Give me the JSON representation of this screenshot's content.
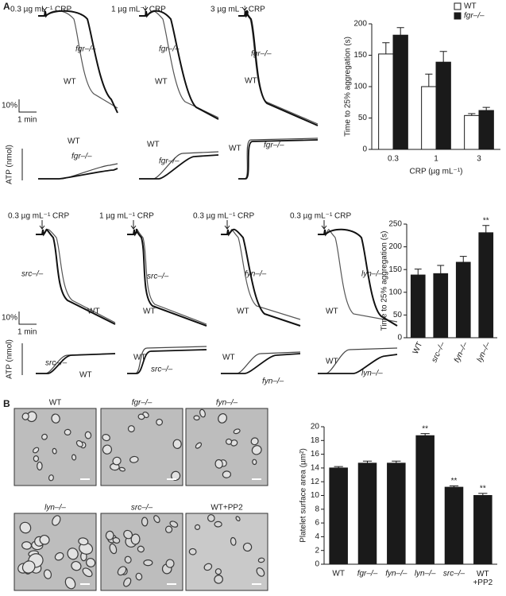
{
  "panel_labels": [
    "A",
    "B"
  ],
  "traces_top": {
    "scale_y": "10%",
    "scale_x": "1 min",
    "atp_axis": "ATP (nmol)",
    "panels": [
      {
        "condition": "0.3 µg mL⁻¹ CRP",
        "labels": [
          "fgr–/–",
          "WT"
        ],
        "atp_labels": [
          "WT",
          "fgr–/–"
        ]
      },
      {
        "condition": "1 µg mL⁻¹ CRP",
        "labels": [
          "fgr–/–",
          "WT"
        ],
        "atp_labels": [
          "WT",
          "fgr–/–"
        ]
      },
      {
        "condition": "3 µg mL⁻¹ CRP",
        "labels": [
          "fgr–/–",
          "WT"
        ],
        "atp_labels": [
          "WT",
          "fgr–/–"
        ]
      }
    ]
  },
  "traces_bottom": {
    "scale_y": "10%",
    "scale_x": "1 min",
    "atp_axis": "ATP (nmol)",
    "panels": [
      {
        "condition": "0.3 µg mL⁻¹ CRP",
        "labels": [
          "src–/–",
          "WT"
        ],
        "atp_labels": [
          "src–/–",
          "WT"
        ]
      },
      {
        "condition": "1 µg mL⁻¹ CRP",
        "labels": [
          "src–/–",
          "WT"
        ],
        "atp_labels": [
          "WT",
          "src–/–"
        ]
      },
      {
        "condition": "0.3 µg mL⁻¹ CRP",
        "labels": [
          "fyn–/–",
          "WT"
        ],
        "atp_labels": [
          "WT",
          "fyn–/–"
        ]
      },
      {
        "condition": "0.3 µg mL⁻¹ CRP",
        "labels": [
          "lyn–/–",
          "WT"
        ],
        "atp_labels": [
          "WT",
          "lyn–/–"
        ]
      }
    ]
  },
  "images": [
    "WT",
    "fgr–/–",
    "fyn–/–",
    "lyn–/–",
    "src–/–",
    "WT+PP2"
  ],
  "chart_data": [
    {
      "type": "bar",
      "categories": [
        "0.3",
        "1",
        "3"
      ],
      "series": [
        {
          "name": "WT",
          "color": "#ffffff",
          "values": [
            152,
            100,
            54
          ],
          "errors": [
            18,
            20,
            3
          ]
        },
        {
          "name": "fgr–/–",
          "color": "#1a1a1a",
          "values": [
            182,
            139,
            62
          ],
          "errors": [
            12,
            17,
            5
          ]
        }
      ],
      "ylim": [
        0,
        200
      ],
      "yticks": [
        0,
        50,
        100,
        150,
        200
      ],
      "y_label": "Time to 25% aggregation (s)",
      "x_label": "CRP (µg mL⁻¹)",
      "legend": "upper right"
    },
    {
      "type": "bar",
      "categories": [
        "WT",
        "src–/–",
        "fyn–/–",
        "lyn–/–"
      ],
      "values": [
        138,
        141,
        166,
        231
      ],
      "errors": [
        13,
        18,
        13,
        16
      ],
      "color": "#1a1a1a",
      "significance": [
        null,
        null,
        null,
        "**"
      ],
      "ylim": [
        0,
        250
      ],
      "yticks": [
        0,
        50,
        100,
        150,
        200,
        250
      ],
      "y_label": "Time to 25% aggregation (s)"
    },
    {
      "type": "bar",
      "categories": [
        "WT",
        "fgr–/–",
        "fyn–/–",
        "lyn–/–",
        "src–/–",
        "WT +PP2"
      ],
      "values": [
        14.0,
        14.7,
        14.7,
        18.7,
        11.2,
        10.0
      ],
      "errors": [
        0.2,
        0.3,
        0.3,
        0.3,
        0.2,
        0.3
      ],
      "color": "#1a1a1a",
      "significance": [
        null,
        null,
        null,
        "**",
        "**",
        "**"
      ],
      "ylim": [
        0,
        20
      ],
      "yticks": [
        0,
        2,
        4,
        6,
        8,
        10,
        12,
        14,
        16,
        18,
        20
      ],
      "y_label": "Platelet surface area (µm²)"
    }
  ]
}
